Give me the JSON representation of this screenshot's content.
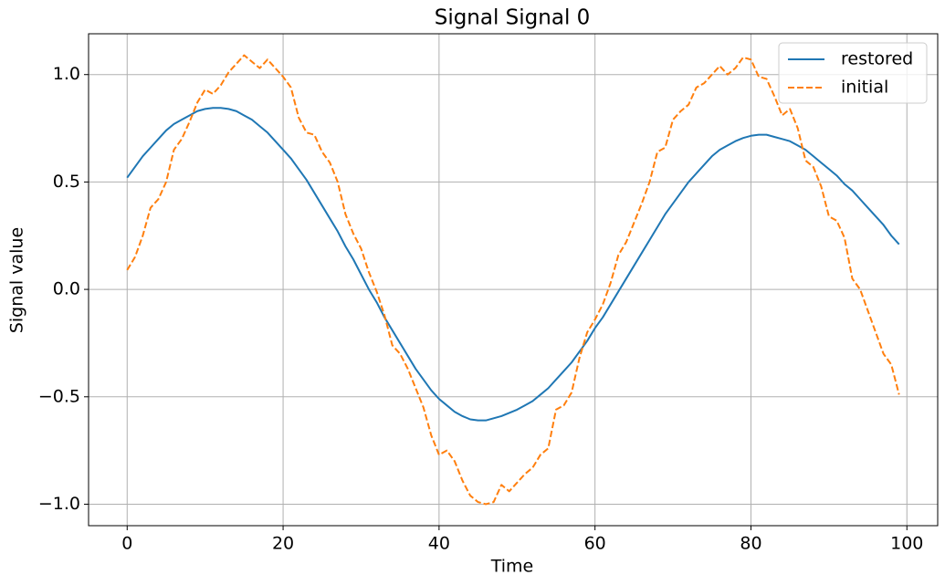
{
  "chart_data": {
    "type": "line",
    "title": "Signal Signal 0",
    "x_label": "Time",
    "y_label": "Signal value",
    "x": [
      0,
      1,
      2,
      3,
      4,
      5,
      6,
      7,
      8,
      9,
      10,
      11,
      12,
      13,
      14,
      15,
      16,
      17,
      18,
      19,
      20,
      21,
      22,
      23,
      24,
      25,
      26,
      27,
      28,
      29,
      30,
      31,
      32,
      33,
      34,
      35,
      36,
      37,
      38,
      39,
      40,
      41,
      42,
      43,
      44,
      45,
      46,
      47,
      48,
      49,
      50,
      51,
      52,
      53,
      54,
      55,
      56,
      57,
      58,
      59,
      60,
      61,
      62,
      63,
      64,
      65,
      66,
      67,
      68,
      69,
      70,
      71,
      72,
      73,
      74,
      75,
      76,
      77,
      78,
      79,
      80,
      81,
      82,
      83,
      84,
      85,
      86,
      87,
      88,
      89,
      90,
      91,
      92,
      93,
      94,
      95,
      96,
      97,
      98,
      99
    ],
    "series": [
      {
        "name": "restored",
        "color": "#1f77b4",
        "dash": "solid",
        "values": [
          0.52,
          0.57,
          0.62,
          0.66,
          0.7,
          0.74,
          0.77,
          0.79,
          0.81,
          0.83,
          0.84,
          0.845,
          0.845,
          0.84,
          0.83,
          0.81,
          0.79,
          0.76,
          0.73,
          0.69,
          0.65,
          0.61,
          0.56,
          0.51,
          0.45,
          0.39,
          0.33,
          0.27,
          0.2,
          0.14,
          0.07,
          0.0,
          -0.06,
          -0.13,
          -0.19,
          -0.25,
          -0.31,
          -0.37,
          -0.42,
          -0.47,
          -0.51,
          -0.54,
          -0.57,
          -0.59,
          -0.605,
          -0.61,
          -0.61,
          -0.6,
          -0.59,
          -0.575,
          -0.56,
          -0.54,
          -0.52,
          -0.49,
          -0.46,
          -0.42,
          -0.38,
          -0.34,
          -0.29,
          -0.24,
          -0.18,
          -0.13,
          -0.07,
          -0.01,
          0.05,
          0.11,
          0.17,
          0.23,
          0.29,
          0.35,
          0.4,
          0.45,
          0.5,
          0.54,
          0.58,
          0.62,
          0.65,
          0.67,
          0.69,
          0.705,
          0.715,
          0.72,
          0.72,
          0.71,
          0.7,
          0.69,
          0.67,
          0.65,
          0.62,
          0.59,
          0.56,
          0.53,
          0.49,
          0.46,
          0.42,
          0.38,
          0.34,
          0.3,
          0.25,
          0.21
        ]
      },
      {
        "name": "initial",
        "color": "#ff7f0e",
        "dash": "dashed",
        "values": [
          0.09,
          0.15,
          0.25,
          0.38,
          0.42,
          0.5,
          0.65,
          0.7,
          0.78,
          0.87,
          0.93,
          0.91,
          0.95,
          1.01,
          1.05,
          1.09,
          1.06,
          1.03,
          1.07,
          1.03,
          0.99,
          0.94,
          0.8,
          0.73,
          0.72,
          0.64,
          0.59,
          0.5,
          0.35,
          0.26,
          0.19,
          0.08,
          -0.01,
          -0.12,
          -0.26,
          -0.3,
          -0.37,
          -0.46,
          -0.55,
          -0.68,
          -0.77,
          -0.75,
          -0.8,
          -0.89,
          -0.96,
          -0.99,
          -1.0,
          -0.99,
          -0.91,
          -0.94,
          -0.9,
          -0.86,
          -0.83,
          -0.77,
          -0.74,
          -0.56,
          -0.54,
          -0.48,
          -0.32,
          -0.2,
          -0.14,
          -0.07,
          0.03,
          0.16,
          0.22,
          0.31,
          0.4,
          0.5,
          0.64,
          0.66,
          0.79,
          0.83,
          0.86,
          0.94,
          0.96,
          1.0,
          1.04,
          1.0,
          1.03,
          1.08,
          1.07,
          0.99,
          0.98,
          0.9,
          0.81,
          0.84,
          0.75,
          0.6,
          0.57,
          0.48,
          0.34,
          0.32,
          0.24,
          0.05,
          0.0,
          -0.1,
          -0.2,
          -0.3,
          -0.35,
          -0.49
        ]
      }
    ],
    "xlim": [
      -4.95,
      103.95
    ],
    "ylim": [
      -1.1,
      1.19
    ],
    "xticks": [
      0,
      20,
      40,
      60,
      80,
      100
    ],
    "yticks": [
      {
        "value": -1.0,
        "label": "−1.0"
      },
      {
        "value": -0.5,
        "label": "−0.5"
      },
      {
        "value": 0.0,
        "label": "0.0"
      },
      0.5,
      {
        "value": 1.0,
        "label": "1.0"
      }
    ],
    "grid": true,
    "legend_position": "upper right"
  }
}
